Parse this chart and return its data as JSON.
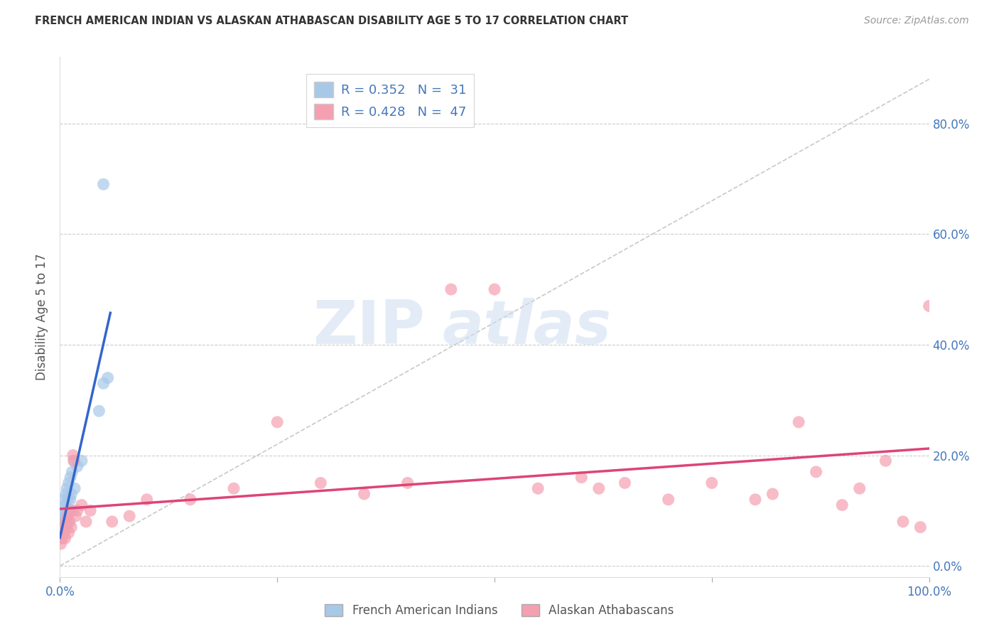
{
  "title": "FRENCH AMERICAN INDIAN VS ALASKAN ATHABASCAN DISABILITY AGE 5 TO 17 CORRELATION CHART",
  "source": "Source: ZipAtlas.com",
  "ylabel": "Disability Age 5 to 17",
  "blue_label": "French American Indians",
  "pink_label": "Alaskan Athabascans",
  "blue_R": "0.352",
  "blue_N": "31",
  "pink_R": "0.428",
  "pink_N": "47",
  "blue_color": "#a8c8e8",
  "pink_color": "#f4a0b0",
  "blue_line_color": "#3366cc",
  "pink_line_color": "#dd4477",
  "watermark_zip": "ZIP",
  "watermark_atlas": "atlas",
  "blue_points_x": [
    0.001,
    0.002,
    0.003,
    0.003,
    0.004,
    0.004,
    0.005,
    0.005,
    0.006,
    0.006,
    0.007,
    0.007,
    0.008,
    0.008,
    0.009,
    0.01,
    0.01,
    0.011,
    0.012,
    0.012,
    0.013,
    0.014,
    0.015,
    0.016,
    0.017,
    0.02,
    0.025,
    0.05,
    0.055,
    0.045,
    0.05
  ],
  "blue_points_y": [
    0.05,
    0.07,
    0.06,
    0.09,
    0.08,
    0.12,
    0.07,
    0.1,
    0.08,
    0.11,
    0.09,
    0.13,
    0.1,
    0.14,
    0.12,
    0.08,
    0.15,
    0.1,
    0.12,
    0.16,
    0.13,
    0.17,
    0.1,
    0.19,
    0.14,
    0.18,
    0.19,
    0.33,
    0.34,
    0.28,
    0.69
  ],
  "pink_points_x": [
    0.001,
    0.002,
    0.003,
    0.004,
    0.005,
    0.006,
    0.007,
    0.008,
    0.009,
    0.01,
    0.011,
    0.012,
    0.013,
    0.015,
    0.016,
    0.018,
    0.02,
    0.025,
    0.03,
    0.035,
    0.06,
    0.08,
    0.1,
    0.15,
    0.2,
    0.25,
    0.3,
    0.35,
    0.4,
    0.45,
    0.5,
    0.55,
    0.6,
    0.62,
    0.65,
    0.7,
    0.75,
    0.8,
    0.82,
    0.85,
    0.87,
    0.9,
    0.92,
    0.95,
    0.97,
    0.99,
    1.0
  ],
  "pink_points_y": [
    0.04,
    0.06,
    0.05,
    0.07,
    0.06,
    0.05,
    0.08,
    0.07,
    0.09,
    0.06,
    0.08,
    0.1,
    0.07,
    0.2,
    0.19,
    0.09,
    0.1,
    0.11,
    0.08,
    0.1,
    0.08,
    0.09,
    0.12,
    0.12,
    0.14,
    0.26,
    0.15,
    0.13,
    0.15,
    0.5,
    0.5,
    0.14,
    0.16,
    0.14,
    0.15,
    0.12,
    0.15,
    0.12,
    0.13,
    0.26,
    0.17,
    0.11,
    0.14,
    0.19,
    0.08,
    0.07,
    0.47
  ],
  "xlim": [
    0.0,
    1.0
  ],
  "ylim": [
    -0.02,
    0.92
  ],
  "ytick_positions": [
    0.0,
    0.2,
    0.4,
    0.6,
    0.8
  ],
  "ytick_labels": [
    "0.0%",
    "20.0%",
    "40.0%",
    "60.0%",
    "80.0%"
  ],
  "xtick_positions": [
    0.0,
    0.25,
    0.5,
    0.75,
    1.0
  ],
  "xtick_labels_show": [
    "0.0%",
    "",
    "",
    "",
    "100.0%"
  ],
  "grid_color": "#cccccc",
  "bg_color": "#ffffff",
  "tick_color": "#4477bb"
}
